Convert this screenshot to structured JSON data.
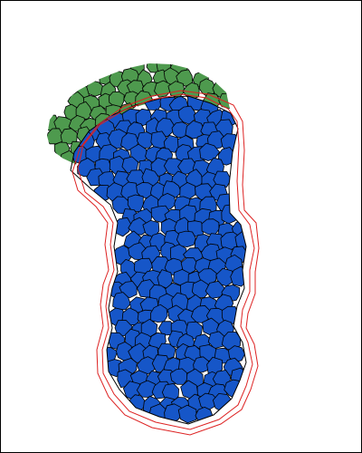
{
  "diagram": {
    "type": "cell-segmentation-overlay",
    "background_color": "#ffffff",
    "border_color": "#000000",
    "cell_outline_color": "#000000",
    "regions": [
      {
        "id": "green",
        "fill": "#4e9a4e",
        "cell_count_approx": 60
      },
      {
        "id": "blue",
        "fill": "#1656c8",
        "cell_count_approx": 330
      }
    ],
    "contours": [
      {
        "id": "outer",
        "stroke": "#dd2222"
      },
      {
        "id": "inner",
        "stroke": "#dd2222"
      }
    ]
  }
}
